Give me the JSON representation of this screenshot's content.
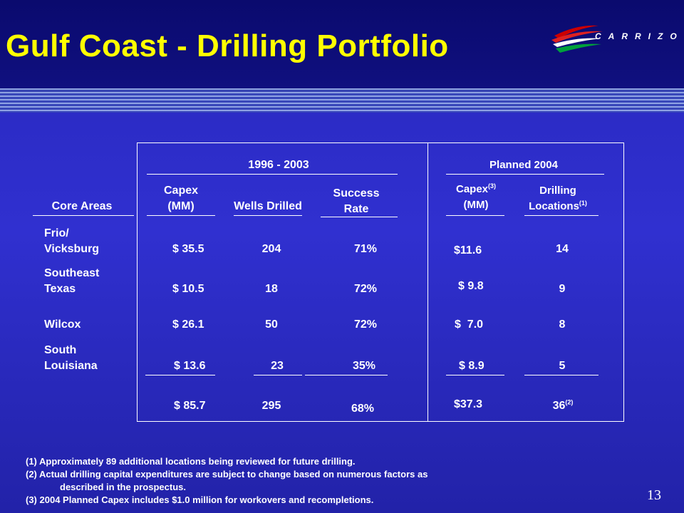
{
  "title": "Gulf Coast - Drilling Portfolio",
  "logo": {
    "text": "CARRIZO",
    "colors": [
      "#cc0000",
      "#00a03c",
      "#ffffff"
    ]
  },
  "period_heading": "1996 - 2003",
  "planned_heading": "Planned 2004",
  "headers": {
    "core_areas": "Core Areas",
    "capex_line1": "Capex",
    "capex_line2": "(MM)",
    "wells_drilled": "Wells Drilled",
    "success_line1": "Success",
    "success_line2": "Rate",
    "capex2004_line1": "Capex",
    "capex2004_sup": "(3)",
    "capex2004_line2": "(MM)",
    "drilling_line1": "Drilling",
    "drilling_line2": "Locations",
    "drilling_sup": "(1)"
  },
  "rows": [
    {
      "area_line1": "Frio/",
      "area_line2": "Vicksburg",
      "capex": "$ 35.5",
      "wells": "204",
      "success": "71%",
      "capex2004": "$11.6",
      "locations": "14"
    },
    {
      "area_line1": "Southeast",
      "area_line2": "Texas",
      "capex": "$ 10.5",
      "wells": "18",
      "success": "72%",
      "capex2004": "$ 9.8",
      "locations": "9"
    },
    {
      "area_line1": "",
      "area_line2": "Wilcox",
      "capex": "$ 26.1",
      "wells": "50",
      "success": "72%",
      "capex2004": "$  7.0",
      "locations": "8"
    },
    {
      "area_line1": "South",
      "area_line2": "Louisiana",
      "capex": "$ 13.6",
      "wells": "23",
      "success": "35%",
      "capex2004": "$ 8.9",
      "locations": "5"
    }
  ],
  "totals": {
    "capex": "$ 85.7",
    "wells": "295",
    "success": "68%",
    "capex2004": "$37.3",
    "locations": "36",
    "locations_sup": "(2)"
  },
  "footnotes": [
    "(1) Approximately 89 additional locations being reviewed for future drilling.",
    "(2) Actual drilling capital expenditures are subject to change based on numerous factors as",
    "described in the prospectus.",
    "(3) 2004 Planned Capex includes $1.0 million for workovers and recompletions."
  ],
  "page_number": "13",
  "colors": {
    "title": "#ffff00",
    "background": "#2b2bc4",
    "text": "#ffffff"
  }
}
